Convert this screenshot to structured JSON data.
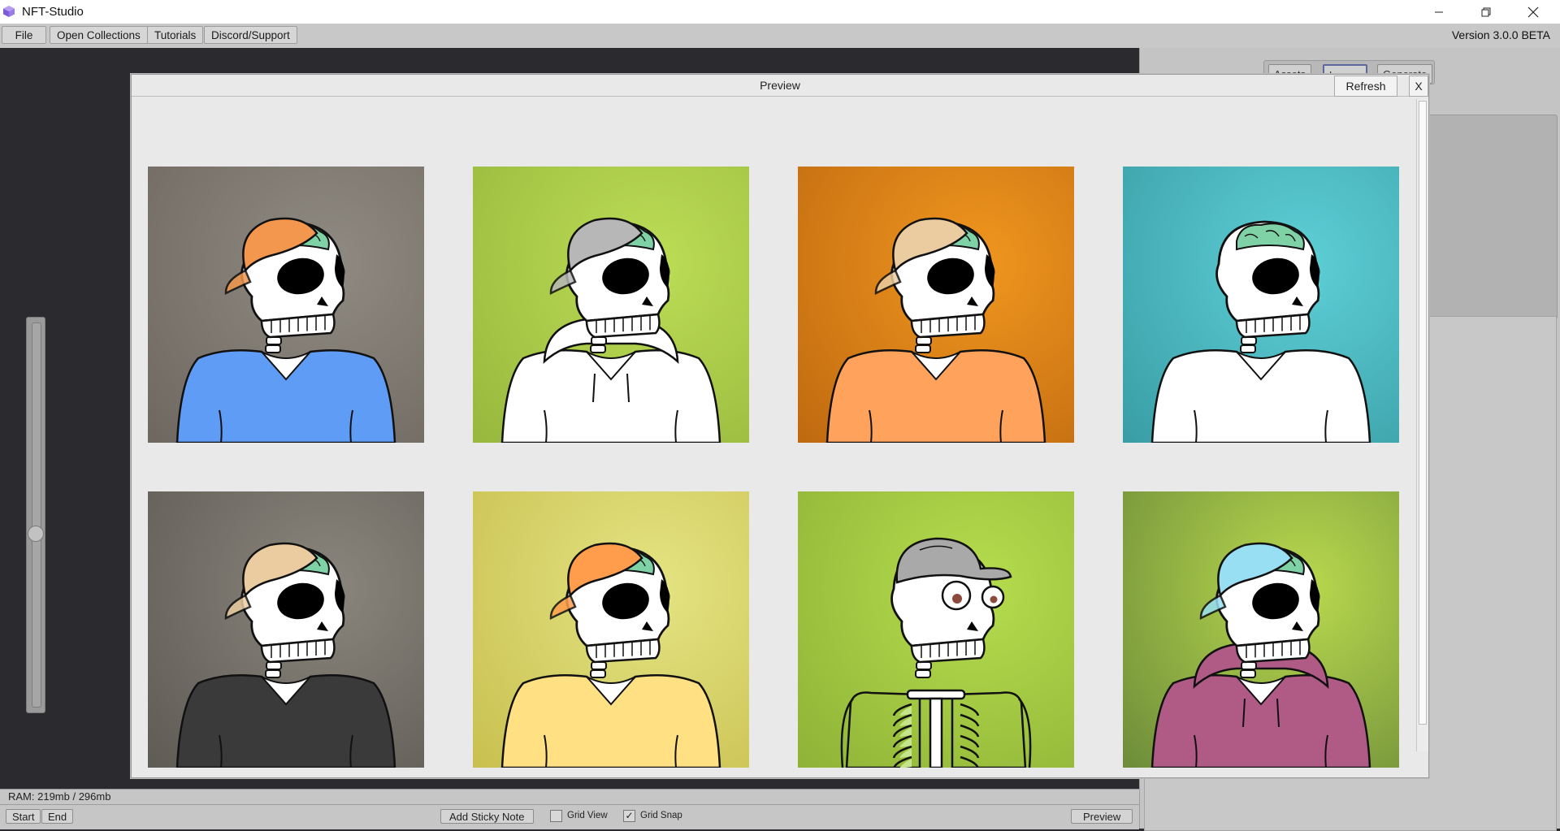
{
  "window": {
    "title": "NFT-Studio",
    "controls": [
      "minimize-icon",
      "restore-icon",
      "close-icon"
    ]
  },
  "menu": {
    "file": "File",
    "open_collections": "Open Collections",
    "tutorials": "Tutorials",
    "discord_support": "Discord/Support",
    "version": "Version 3.0.0 BETA"
  },
  "right_panel": {
    "tabs": [
      {
        "label": "Assets"
      },
      {
        "label": "Layers"
      },
      {
        "label": "Generate"
      }
    ]
  },
  "preview": {
    "title": "Preview",
    "refresh_label": "Refresh",
    "close_label": "X",
    "tiles": [
      {
        "bg": "#8f8a82",
        "bg2": "#6e6860",
        "hat": "hat-orange",
        "hat_color": "#f2974d",
        "brain": true,
        "shirt": "tee",
        "shirt_color": "#5e9cf5",
        "eyes": "hollow"
      },
      {
        "bg": "#bcdd55",
        "bg2": "#98b83e",
        "hat": "hat-gray",
        "hat_color": "#b7b7b7",
        "brain": true,
        "shirt": "hoodie",
        "shirt_color": "#ffffff",
        "eyes": "hollow"
      },
      {
        "bg": "#f0961f",
        "bg2": "#c06a10",
        "hat": "hat-tan",
        "hat_color": "#eacca0",
        "brain": true,
        "shirt": "tee",
        "shirt_color": "#ffa35c",
        "eyes": "hollow"
      },
      {
        "bg": "#5ecfd6",
        "bg2": "#3a9ea6",
        "hat": "none",
        "hat_color": "",
        "brain": true,
        "shirt": "tee",
        "shirt_color": "#ffffff",
        "eyes": "hollow"
      },
      {
        "bg": "#8a867d",
        "bg2": "#5f5b55",
        "hat": "hat-tan",
        "hat_color": "#eacca0",
        "brain": true,
        "shirt": "tee",
        "shirt_color": "#3a3a3a",
        "eyes": "hollow"
      },
      {
        "bg": "#e4e483",
        "bg2": "#c9c050",
        "hat": "hat-orange",
        "hat_color": "#ff9d4d",
        "brain": true,
        "shirt": "tee",
        "shirt_color": "#ffe083",
        "eyes": "hollow"
      },
      {
        "bg": "#b6dd4e",
        "bg2": "#8fb337",
        "hat": "cap-gray",
        "hat_color": "#a9a9a9",
        "brain": false,
        "shirt": "ribs",
        "shirt_color": "#c4e58a",
        "eyes": "googly"
      },
      {
        "bg": "#b9d94e",
        "bg2": "#6e8d3a",
        "hat": "hat-cyan",
        "hat_color": "#98dff3",
        "brain": true,
        "shirt": "hoodie",
        "shirt_color": "#b05a86",
        "eyes": "hollow"
      }
    ]
  },
  "status": {
    "ram": "RAM: 219mb / 296mb"
  },
  "bottom_toolbar": {
    "start": "Start",
    "end": "End",
    "add_sticky_note": "Add Sticky Note",
    "grid_view_label": "Grid View",
    "grid_view_checked": "",
    "grid_snap_label": "Grid Snap",
    "grid_snap_checked": "✓",
    "preview": "Preview"
  }
}
